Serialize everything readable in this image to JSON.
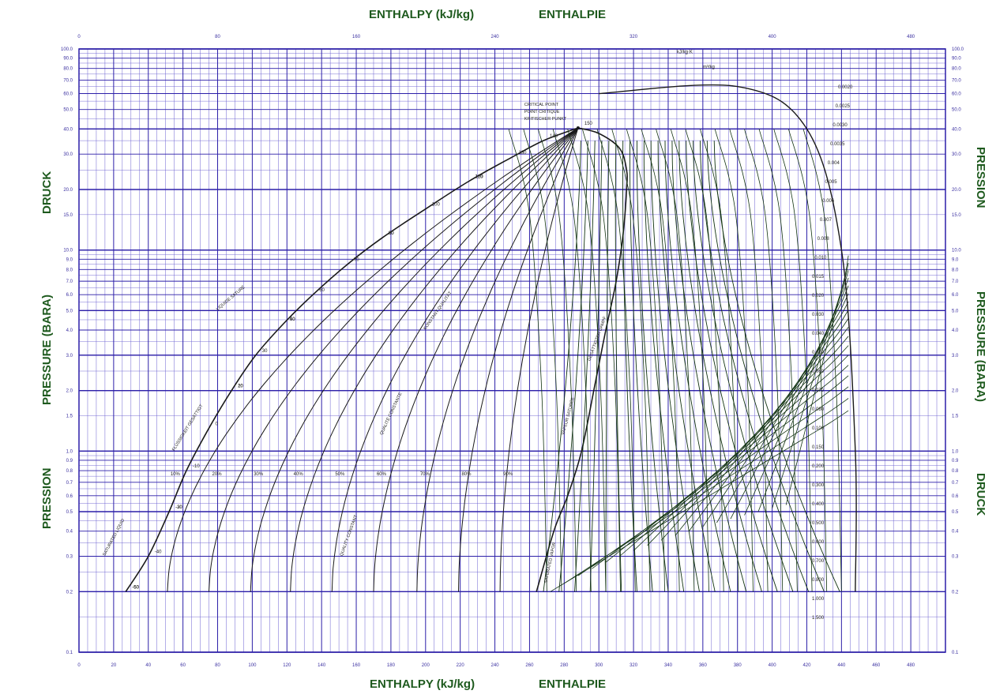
{
  "titles": {
    "top_left": "ENTHALPY (kJ/kg)",
    "top_right": "ENTHALPIE",
    "bottom_left": "ENTHALPY (kJ/kg)",
    "bottom_right": "ENTHALPIE",
    "left_druck": "DRUCK",
    "left_pressure": "PRESSURE (BARA)",
    "left_pression": "PRESSION",
    "right_pression": "PRESSION",
    "right_pressure": "PRESSURE (BARA)",
    "right_druck": "DRUCK"
  },
  "colors": {
    "grid_major": "#2c1fa8",
    "grid_minor": "#6a5fd0",
    "curves": "#1a1a1a",
    "titles": "#1e5a1e"
  },
  "chart_data": {
    "type": "line",
    "xlabel": "ENTHALPY (kJ/kg)",
    "ylabel": "PRESSURE (BARA)",
    "xlim": [
      0,
      500
    ],
    "ylim": [
      0.1,
      100
    ],
    "y_scale": "log",
    "grid": true,
    "top_ticks": [
      "0",
      "80",
      "160",
      "240",
      "320",
      "400",
      "480"
    ],
    "bottom_ticks": [
      "0",
      "20",
      "40",
      "60",
      "80",
      "100",
      "120",
      "140",
      "160",
      "180",
      "200",
      "220",
      "240",
      "260",
      "280",
      "300",
      "320",
      "340",
      "360",
      "380",
      "400",
      "420",
      "440",
      "460",
      "480"
    ],
    "y_ticks": [
      "0.1",
      "0.2",
      "0.3",
      "0.4",
      "0.5",
      "0.6",
      "0.7",
      "0.8",
      "0.9",
      "1.0",
      "1.5",
      "2.0",
      "3.0",
      "4.0",
      "5.0",
      "6.0",
      "7.0",
      "8.0",
      "9.0",
      "10.0",
      "15.0",
      "20.0",
      "30.0",
      "40.0",
      "50.0",
      "60.0",
      "70.0",
      "80.0",
      "90.0",
      "100.0"
    ],
    "critical_point": {
      "h": 288,
      "p": 40.5,
      "labels": [
        "CRITICAL POINT",
        "POINT CRITIQUE",
        "KRITISCHER PUNKT"
      ]
    },
    "saturated_liquid": {
      "h": [
        27,
        40,
        52,
        62,
        75,
        88,
        102,
        118,
        135,
        155,
        175,
        200,
        225,
        250,
        268,
        288
      ],
      "p": [
        0.2,
        0.3,
        0.5,
        0.8,
        1.3,
        2.0,
        3.0,
        4.3,
        6.0,
        8.5,
        11.5,
        16.0,
        22.0,
        29.0,
        35.0,
        40.5
      ],
      "labels": [
        "SATURATED LIQUID",
        "FLÜSSIGKEIT GESÄTTIGT",
        "LIQUIDE SATURÉ"
      ]
    },
    "saturated_vapor": {
      "h": [
        288,
        300,
        312,
        316,
        316,
        314,
        310,
        304,
        298,
        290,
        282,
        274,
        264
      ],
      "p": [
        40.5,
        38.0,
        32.0,
        25.0,
        20.0,
        12.0,
        7.0,
        4.0,
        2.2,
        1.0,
        0.6,
        0.4,
        0.2
      ],
      "labels": [
        "SATURATED VAPOR",
        "VAPEUR SATURÉE",
        "GESÄTTIGTER DAMPF"
      ]
    },
    "quality_lines": {
      "labels": [
        "10%",
        "20%",
        "30%",
        "40%",
        "50%",
        "60%",
        "70%",
        "80%",
        "90%"
      ],
      "h_at_bottom": [
        51,
        75,
        99,
        122,
        146,
        170,
        195,
        219,
        243
      ]
    },
    "quality_titles": [
      "QUALITY CONSTANT",
      "QUALITÉ CONSTANTE",
      "KONSTANT QUALITÄT"
    ],
    "isotherm_labels": [
      "-60",
      "-50",
      "-40",
      "-30",
      "-20",
      "-10",
      "0",
      "10",
      "20",
      "30",
      "40",
      "50",
      "60",
      "70",
      "80",
      "90",
      "100",
      "110",
      "120",
      "130",
      "140",
      "150"
    ],
    "isochore_labels": [
      "0.0020",
      "0.0025",
      "0.0030",
      "0.0035",
      "0.004",
      "0.005",
      "0.006",
      "0.007",
      "0.008",
      "0.010",
      "0.015",
      "0.020",
      "0.030",
      "0.040",
      "0.050",
      "0.060",
      "0.070",
      "0.080",
      "0.100",
      "0.150",
      "0.200",
      "0.300",
      "0.400",
      "0.500",
      "0.600",
      "0.700",
      "0.800",
      "1.000",
      "1.500"
    ],
    "isochore_unit": "m³/kg",
    "entropy_label": "kJ/kg·K"
  }
}
